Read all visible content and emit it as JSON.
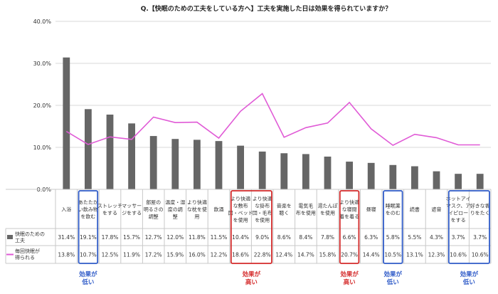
{
  "chart_data": {
    "type": "bar",
    "title": "Q.【快眠のための工夫をしている方へ】工夫を実施した日は効果を得られていますか？",
    "categories": [
      [
        "入浴"
      ],
      [
        "あたたか",
        "い飲み物",
        "を飲む"
      ],
      [
        "ストレッチ",
        "をする"
      ],
      [
        "マッサー",
        "ジをする"
      ],
      [
        "部屋の",
        "明るさの",
        "調整"
      ],
      [
        "温度・湿",
        "度の調",
        "整"
      ],
      [
        "より快適",
        "な枕を使",
        "用"
      ],
      [
        "飲酒"
      ],
      [
        "より快適",
        "な敷布",
        "団・ベッド",
        "を使用"
      ],
      [
        "より快適",
        "な掛布",
        "団・毛布",
        "を使用"
      ],
      [
        "音楽を",
        "聴く"
      ],
      [
        "電気毛",
        "布を使用"
      ],
      [
        "湯たんぽ",
        "を使用"
      ],
      [
        "より快適",
        "な寝間",
        "着を着る"
      ],
      [
        "昼寝"
      ],
      [
        "睡眠薬",
        "をのむ"
      ],
      [
        "読書"
      ],
      [
        "遮音"
      ],
      [
        "ホットアイ",
        "マスク、ア",
        "イピロー",
        "をする"
      ],
      [
        "好きな香",
        "りをたく"
      ]
    ],
    "ylim": [
      0,
      40
    ],
    "yticks": [
      "0.0%",
      "10.0%",
      "20.0%",
      "30.0%",
      "40.0%"
    ],
    "grid": true,
    "series": [
      {
        "name": "快眠のための工夫",
        "legend_lines": [
          "快眠のための",
          "工夫"
        ],
        "type": "bar",
        "color": "#666666",
        "values": [
          31.4,
          19.1,
          17.8,
          15.7,
          12.7,
          12.0,
          11.8,
          11.5,
          10.4,
          9.0,
          8.6,
          8.4,
          7.8,
          6.6,
          6.3,
          5.8,
          5.5,
          4.3,
          3.7,
          3.7
        ],
        "labels": [
          "31.4%",
          "19.1%",
          "17.8%",
          "15.7%",
          "12.7%",
          "12.0%",
          "11.8%",
          "11.5%",
          "10.4%",
          "9.0%",
          "8.6%",
          "8.4%",
          "7.8%",
          "6.6%",
          "6.3%",
          "5.8%",
          "5.5%",
          "4.3%",
          "3.7%",
          "3.7%"
        ]
      },
      {
        "name": "毎回快眠が得られる",
        "legend_lines": [
          "毎回快眠が",
          "得られる"
        ],
        "type": "line",
        "color": "#e05ad6",
        "values": [
          13.8,
          10.7,
          12.5,
          11.9,
          17.2,
          15.9,
          16.0,
          12.2,
          18.6,
          22.8,
          12.4,
          14.7,
          15.8,
          20.7,
          14.4,
          10.5,
          13.1,
          12.3,
          10.6,
          10.6
        ],
        "labels": [
          "13.8%",
          "10.7%",
          "12.5%",
          "11.9%",
          "17.2%",
          "15.9%",
          "16.0%",
          "12.2%",
          "18.6%",
          "22.8%",
          "12.4%",
          "14.7%",
          "15.8%",
          "20.7%",
          "14.4%",
          "10.5%",
          "13.1%",
          "12.3%",
          "10.6%",
          "10.6%"
        ]
      }
    ],
    "highlights": [
      {
        "from": 1,
        "to": 1,
        "color": "#2f5bc8",
        "label": [
          "効果が",
          "低い"
        ]
      },
      {
        "from": 8,
        "to": 9,
        "color": "#d42a2a",
        "label": [
          "効果が",
          "高い"
        ]
      },
      {
        "from": 13,
        "to": 13,
        "color": "#d42a2a",
        "label": [
          "効果が",
          "高い"
        ]
      },
      {
        "from": 15,
        "to": 15,
        "color": "#2f5bc8",
        "label": [
          "効果が",
          "低い"
        ]
      },
      {
        "from": 18,
        "to": 19,
        "color": "#2f5bc8",
        "label": [
          "効果が",
          "低い"
        ]
      }
    ]
  }
}
